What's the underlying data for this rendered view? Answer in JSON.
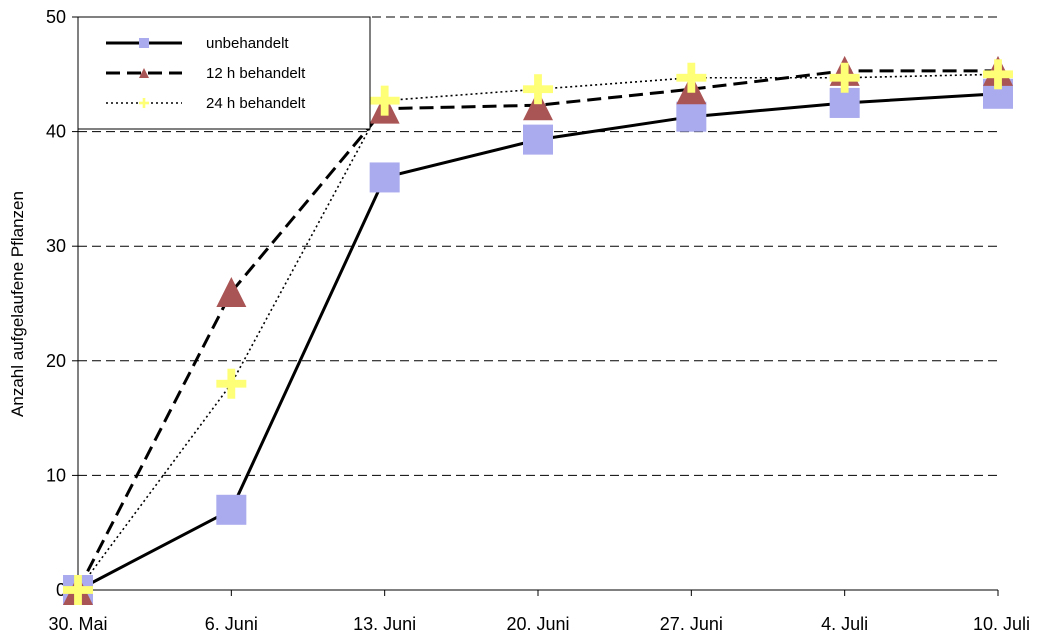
{
  "chart_data": {
    "type": "line",
    "title": "",
    "xlabel": "",
    "ylabel": "Anzahl aufgelaufene Pflanzen",
    "categories": [
      "30. Mai",
      "6. Juni",
      "13. Juni",
      "20. Juni",
      "27. Juni",
      "4. Juli",
      "10. Juli"
    ],
    "ylim": [
      0,
      50
    ],
    "yticks": [
      0,
      10,
      20,
      30,
      40,
      50
    ],
    "grid": "horizontal dashed",
    "legend_position": "top-left",
    "series": [
      {
        "name": "unbehandelt",
        "values": [
          0,
          7,
          36,
          39.3,
          41.3,
          42.5,
          43.3
        ],
        "line_style": "solid",
        "marker": "square",
        "line_color": "#000000",
        "marker_color": "#aaaaee"
      },
      {
        "name": "12 h behandelt",
        "values": [
          0,
          26,
          42,
          42.3,
          43.7,
          45.3,
          45.3
        ],
        "line_style": "dashed",
        "marker": "triangle",
        "line_color": "#000000",
        "marker_color": "#aa5555"
      },
      {
        "name": "24 h behandelt",
        "values": [
          0,
          18,
          42.7,
          43.7,
          44.7,
          44.7,
          45
        ],
        "line_style": "dotted",
        "marker": "plus",
        "line_color": "#000000",
        "marker_color": "#ffff77"
      }
    ]
  }
}
